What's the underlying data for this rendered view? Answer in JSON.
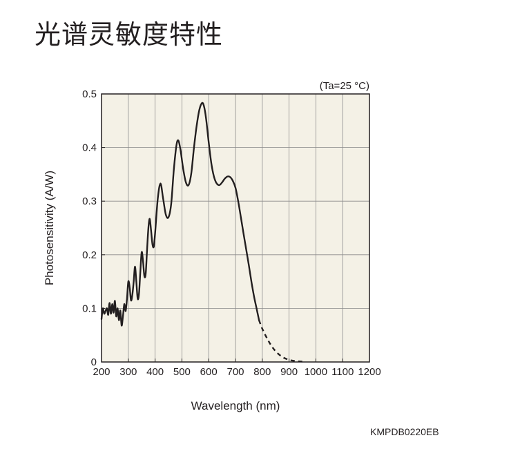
{
  "page": {
    "title": "光谱灵敏度特性",
    "figure_code": "KMPDB0220EB"
  },
  "chart_data": {
    "type": "line",
    "title": "",
    "condition": "(Ta=25 °C)",
    "xlabel": "Wavelength (nm)",
    "ylabel": "Photosensitivity (A/W)",
    "xlim": [
      200,
      1200
    ],
    "ylim": [
      0,
      0.5
    ],
    "xticks": [
      200,
      300,
      400,
      500,
      600,
      700,
      800,
      900,
      1000,
      1100,
      1200
    ],
    "xtick_labels": [
      "200",
      "300",
      "400",
      "500",
      "600",
      "700",
      "800",
      "900",
      "1000",
      "1100",
      "1200"
    ],
    "yticks": [
      0,
      0.1,
      0.2,
      0.3,
      0.4,
      0.5
    ],
    "ytick_labels": [
      "0",
      "0.1",
      "0.2",
      "0.3",
      "0.4",
      "0.5"
    ],
    "grid": true,
    "plot_background": "#f4f1e6",
    "series": [
      {
        "style": "solid",
        "color": "#231f20",
        "points": [
          [
            200,
            0.08
          ],
          [
            205,
            0.1
          ],
          [
            210,
            0.09
          ],
          [
            215,
            0.095
          ],
          [
            220,
            0.1
          ],
          [
            225,
            0.088
          ],
          [
            230,
            0.11
          ],
          [
            235,
            0.09
          ],
          [
            240,
            0.108
          ],
          [
            245,
            0.092
          ],
          [
            250,
            0.114
          ],
          [
            255,
            0.085
          ],
          [
            260,
            0.1
          ],
          [
            265,
            0.078
          ],
          [
            270,
            0.096
          ],
          [
            275,
            0.068
          ],
          [
            280,
            0.085
          ],
          [
            285,
            0.108
          ],
          [
            290,
            0.095
          ],
          [
            295,
            0.118
          ],
          [
            300,
            0.15
          ],
          [
            305,
            0.14
          ],
          [
            310,
            0.115
          ],
          [
            315,
            0.125
          ],
          [
            320,
            0.15
          ],
          [
            325,
            0.178
          ],
          [
            330,
            0.15
          ],
          [
            335,
            0.118
          ],
          [
            340,
            0.128
          ],
          [
            345,
            0.17
          ],
          [
            350,
            0.205
          ],
          [
            355,
            0.188
          ],
          [
            360,
            0.16
          ],
          [
            365,
            0.165
          ],
          [
            370,
            0.21
          ],
          [
            375,
            0.25
          ],
          [
            380,
            0.267
          ],
          [
            385,
            0.245
          ],
          [
            390,
            0.22
          ],
          [
            395,
            0.215
          ],
          [
            400,
            0.24
          ],
          [
            410,
            0.305
          ],
          [
            420,
            0.333
          ],
          [
            430,
            0.305
          ],
          [
            440,
            0.275
          ],
          [
            450,
            0.27
          ],
          [
            460,
            0.295
          ],
          [
            470,
            0.36
          ],
          [
            480,
            0.405
          ],
          [
            487,
            0.413
          ],
          [
            495,
            0.395
          ],
          [
            505,
            0.36
          ],
          [
            515,
            0.335
          ],
          [
            525,
            0.33
          ],
          [
            535,
            0.352
          ],
          [
            545,
            0.4
          ],
          [
            555,
            0.44
          ],
          [
            565,
            0.47
          ],
          [
            575,
            0.483
          ],
          [
            582,
            0.478
          ],
          [
            590,
            0.455
          ],
          [
            600,
            0.41
          ],
          [
            610,
            0.37
          ],
          [
            620,
            0.345
          ],
          [
            630,
            0.333
          ],
          [
            640,
            0.33
          ],
          [
            650,
            0.335
          ],
          [
            660,
            0.342
          ],
          [
            670,
            0.346
          ],
          [
            680,
            0.345
          ],
          [
            690,
            0.338
          ],
          [
            700,
            0.325
          ],
          [
            710,
            0.3
          ],
          [
            720,
            0.27
          ],
          [
            730,
            0.24
          ],
          [
            740,
            0.21
          ],
          [
            750,
            0.18
          ],
          [
            760,
            0.148
          ],
          [
            770,
            0.12
          ],
          [
            780,
            0.097
          ],
          [
            788,
            0.078
          ]
        ]
      },
      {
        "style": "dashed",
        "color": "#231f20",
        "points": [
          [
            788,
            0.078
          ],
          [
            800,
            0.062
          ],
          [
            820,
            0.042
          ],
          [
            840,
            0.026
          ],
          [
            860,
            0.015
          ],
          [
            880,
            0.008
          ],
          [
            900,
            0.004
          ],
          [
            920,
            0.002
          ],
          [
            940,
            0.001
          ],
          [
            960,
            0.0005
          ]
        ]
      }
    ]
  }
}
